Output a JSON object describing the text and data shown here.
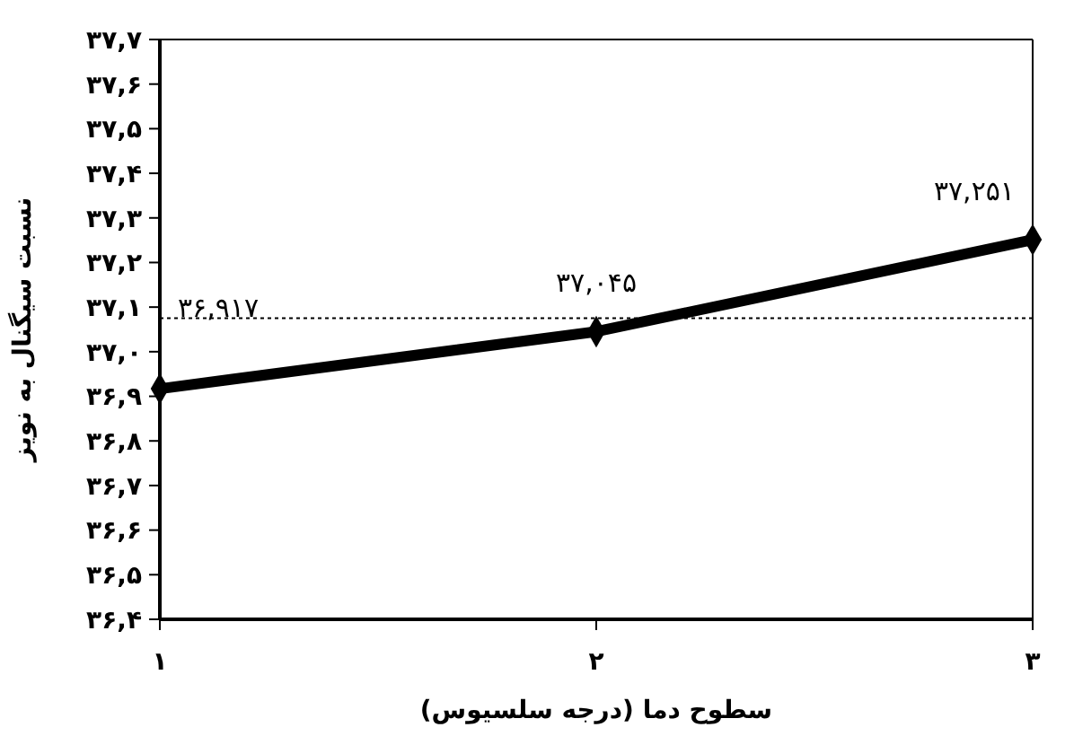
{
  "chart_data": {
    "type": "line",
    "xlabel": "سطوح دما (درجه سلسیوس)",
    "ylabel": "نسبت سیگنال به نویز",
    "categories": [
      "۱",
      "۲",
      "۳"
    ],
    "series": [
      {
        "color": "#000000",
        "values": [
          36.917,
          37.045,
          37.251
        ],
        "value_labels": [
          "۳۶,۹۱۷",
          "۳۷,۰۴۵",
          "۳۷,۲۵۱"
        ]
      }
    ],
    "ylim": [
      36.4,
      37.7
    ],
    "yticks": [
      {
        "value": 36.4,
        "label": "۳۶,۴"
      },
      {
        "value": 36.5,
        "label": "۳۶,۵"
      },
      {
        "value": 36.6,
        "label": "۳۶,۶"
      },
      {
        "value": 36.7,
        "label": "۳۶,۷"
      },
      {
        "value": 36.8,
        "label": "۳۶,۸"
      },
      {
        "value": 36.9,
        "label": "۳۶,۹"
      },
      {
        "value": 37.0,
        "label": "۳۷,۰"
      },
      {
        "value": 37.1,
        "label": "۳۷,۱"
      },
      {
        "value": 37.2,
        "label": "۳۷,۲"
      },
      {
        "value": 37.3,
        "label": "۳۷,۳"
      },
      {
        "value": 37.4,
        "label": "۳۷,۴"
      },
      {
        "value": 37.5,
        "label": "۳۷,۵"
      },
      {
        "value": 37.6,
        "label": "۳۷,۶"
      },
      {
        "value": 37.7,
        "label": "۳۷,۷"
      }
    ],
    "ref_lines": [
      {
        "axis": "y",
        "value": 37.075,
        "color": "#000000",
        "line_style": "dotted"
      }
    ],
    "marker": "diamond",
    "line_style": "solid",
    "grid": false
  }
}
